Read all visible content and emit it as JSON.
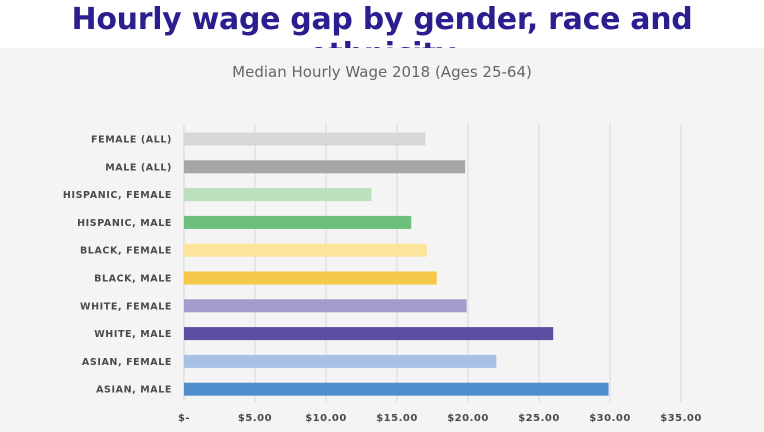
{
  "headline": "Hourly wage gap by gender, race and ethnicity",
  "chart_data": {
    "type": "bar",
    "orientation": "horizontal",
    "title": "Median Hourly Wage 2018 (Ages 25-64)",
    "xlabel": "",
    "ylabel": "",
    "xlim": [
      0,
      35
    ],
    "x_ticks": [
      0,
      5,
      10,
      15,
      20,
      25,
      30,
      35
    ],
    "x_tick_labels": [
      "$-",
      "$5.00",
      "$10.00",
      "$15.00",
      "$20.00",
      "$25.00",
      "$30.00",
      "$35.00"
    ],
    "grid": "vertical",
    "categories": [
      "FEMALE (ALL)",
      "MALE (ALL)",
      "HISPANIC, FEMALE",
      "HISPANIC, MALE",
      "BLACK, FEMALE",
      "BLACK, MALE",
      "WHITE, FEMALE",
      "WHITE, MALE",
      "ASIAN, FEMALE",
      "ASIAN, MALE"
    ],
    "values": [
      17.0,
      19.8,
      13.2,
      16.0,
      17.1,
      17.8,
      19.9,
      26.0,
      22.0,
      29.9
    ],
    "colors": [
      "#d7d7d7",
      "#a6a6a8",
      "#bde0bc",
      "#6cc07b",
      "#fce49a",
      "#f7c94a",
      "#a19ccb",
      "#5a4fa0",
      "#a8c2e5",
      "#4f8fcd"
    ]
  },
  "colors": {
    "headline": "#2b1f8f",
    "panel_background": "#f4f4f4",
    "gridline": "#d9d9d9"
  }
}
